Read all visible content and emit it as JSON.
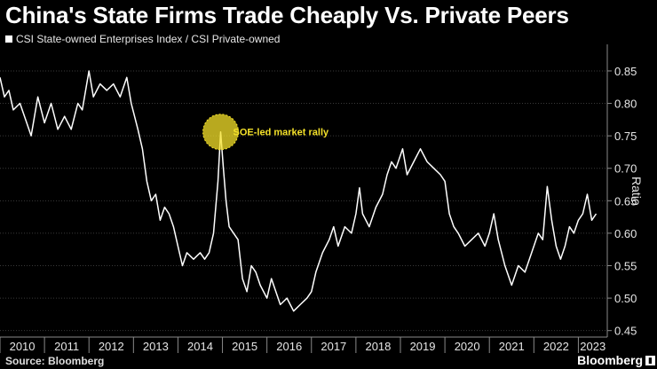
{
  "title": "China's State Firms Trade Cheaply Vs. Private Peers",
  "source": "Source: Bloomberg",
  "brand": "Bloomberg",
  "colors": {
    "background": "#000000",
    "line": "#ffffff",
    "annotation": "#f5e22a",
    "axis": "#8a8a8a"
  },
  "chart_data": {
    "type": "line",
    "series": [
      {
        "name": "CSI State-owned Enterprises Index / CSI Private-owned",
        "points": [
          [
            2010.0,
            0.84
          ],
          [
            2010.1,
            0.81
          ],
          [
            2010.2,
            0.82
          ],
          [
            2010.3,
            0.79
          ],
          [
            2010.45,
            0.8
          ],
          [
            2010.6,
            0.77
          ],
          [
            2010.7,
            0.75
          ],
          [
            2010.85,
            0.81
          ],
          [
            2011.0,
            0.77
          ],
          [
            2011.15,
            0.8
          ],
          [
            2011.3,
            0.76
          ],
          [
            2011.45,
            0.78
          ],
          [
            2011.6,
            0.76
          ],
          [
            2011.75,
            0.8
          ],
          [
            2011.85,
            0.79
          ],
          [
            2012.0,
            0.85
          ],
          [
            2012.1,
            0.81
          ],
          [
            2012.25,
            0.83
          ],
          [
            2012.4,
            0.82
          ],
          [
            2012.55,
            0.83
          ],
          [
            2012.7,
            0.81
          ],
          [
            2012.85,
            0.84
          ],
          [
            2012.95,
            0.8
          ],
          [
            2013.1,
            0.76
          ],
          [
            2013.2,
            0.73
          ],
          [
            2013.3,
            0.68
          ],
          [
            2013.4,
            0.65
          ],
          [
            2013.5,
            0.66
          ],
          [
            2013.6,
            0.62
          ],
          [
            2013.7,
            0.64
          ],
          [
            2013.8,
            0.63
          ],
          [
            2013.9,
            0.61
          ],
          [
            2014.0,
            0.58
          ],
          [
            2014.1,
            0.55
          ],
          [
            2014.2,
            0.57
          ],
          [
            2014.35,
            0.56
          ],
          [
            2014.5,
            0.57
          ],
          [
            2014.6,
            0.56
          ],
          [
            2014.7,
            0.57
          ],
          [
            2014.8,
            0.6
          ],
          [
            2014.9,
            0.68
          ],
          [
            2014.96,
            0.756
          ],
          [
            2015.02,
            0.7
          ],
          [
            2015.08,
            0.65
          ],
          [
            2015.15,
            0.61
          ],
          [
            2015.25,
            0.6
          ],
          [
            2015.35,
            0.59
          ],
          [
            2015.45,
            0.53
          ],
          [
            2015.55,
            0.51
          ],
          [
            2015.65,
            0.55
          ],
          [
            2015.75,
            0.54
          ],
          [
            2015.85,
            0.52
          ],
          [
            2016.0,
            0.5
          ],
          [
            2016.1,
            0.53
          ],
          [
            2016.2,
            0.51
          ],
          [
            2016.3,
            0.49
          ],
          [
            2016.45,
            0.5
          ],
          [
            2016.6,
            0.48
          ],
          [
            2016.75,
            0.49
          ],
          [
            2016.9,
            0.5
          ],
          [
            2017.0,
            0.51
          ],
          [
            2017.1,
            0.54
          ],
          [
            2017.25,
            0.57
          ],
          [
            2017.4,
            0.59
          ],
          [
            2017.5,
            0.61
          ],
          [
            2017.6,
            0.58
          ],
          [
            2017.75,
            0.61
          ],
          [
            2017.9,
            0.6
          ],
          [
            2018.0,
            0.63
          ],
          [
            2018.08,
            0.67
          ],
          [
            2018.15,
            0.63
          ],
          [
            2018.3,
            0.61
          ],
          [
            2018.45,
            0.64
          ],
          [
            2018.6,
            0.66
          ],
          [
            2018.7,
            0.69
          ],
          [
            2018.8,
            0.71
          ],
          [
            2018.9,
            0.7
          ],
          [
            2019.05,
            0.73
          ],
          [
            2019.15,
            0.69
          ],
          [
            2019.3,
            0.71
          ],
          [
            2019.45,
            0.73
          ],
          [
            2019.6,
            0.71
          ],
          [
            2019.75,
            0.7
          ],
          [
            2019.9,
            0.69
          ],
          [
            2020.0,
            0.68
          ],
          [
            2020.1,
            0.63
          ],
          [
            2020.2,
            0.61
          ],
          [
            2020.3,
            0.6
          ],
          [
            2020.45,
            0.58
          ],
          [
            2020.6,
            0.59
          ],
          [
            2020.75,
            0.6
          ],
          [
            2020.9,
            0.58
          ],
          [
            2021.0,
            0.6
          ],
          [
            2021.1,
            0.63
          ],
          [
            2021.2,
            0.59
          ],
          [
            2021.35,
            0.55
          ],
          [
            2021.5,
            0.52
          ],
          [
            2021.65,
            0.55
          ],
          [
            2021.8,
            0.54
          ],
          [
            2021.95,
            0.57
          ],
          [
            2022.1,
            0.6
          ],
          [
            2022.2,
            0.59
          ],
          [
            2022.3,
            0.672
          ],
          [
            2022.4,
            0.62
          ],
          [
            2022.5,
            0.58
          ],
          [
            2022.6,
            0.56
          ],
          [
            2022.7,
            0.58
          ],
          [
            2022.8,
            0.61
          ],
          [
            2022.9,
            0.6
          ],
          [
            2023.0,
            0.62
          ],
          [
            2023.1,
            0.63
          ],
          [
            2023.2,
            0.66
          ],
          [
            2023.3,
            0.62
          ],
          [
            2023.4,
            0.63
          ]
        ]
      }
    ],
    "x_ticks": [
      "2010",
      "2011",
      "2012",
      "2013",
      "2014",
      "2015",
      "2016",
      "2017",
      "2018",
      "2019",
      "2020",
      "2021",
      "2022",
      "2023"
    ],
    "xlim": [
      2010,
      2023.65
    ],
    "y_ticks": [
      0.45,
      0.5,
      0.55,
      0.6,
      0.65,
      0.7,
      0.75,
      0.8,
      0.85
    ],
    "ylim": [
      0.44,
      0.88
    ],
    "ylabel": "Ratio",
    "y_axis_side": "right",
    "grid": "horizontal",
    "annotation": {
      "text": "SOE-led market rally",
      "x": 2014.96,
      "y": 0.756
    }
  }
}
